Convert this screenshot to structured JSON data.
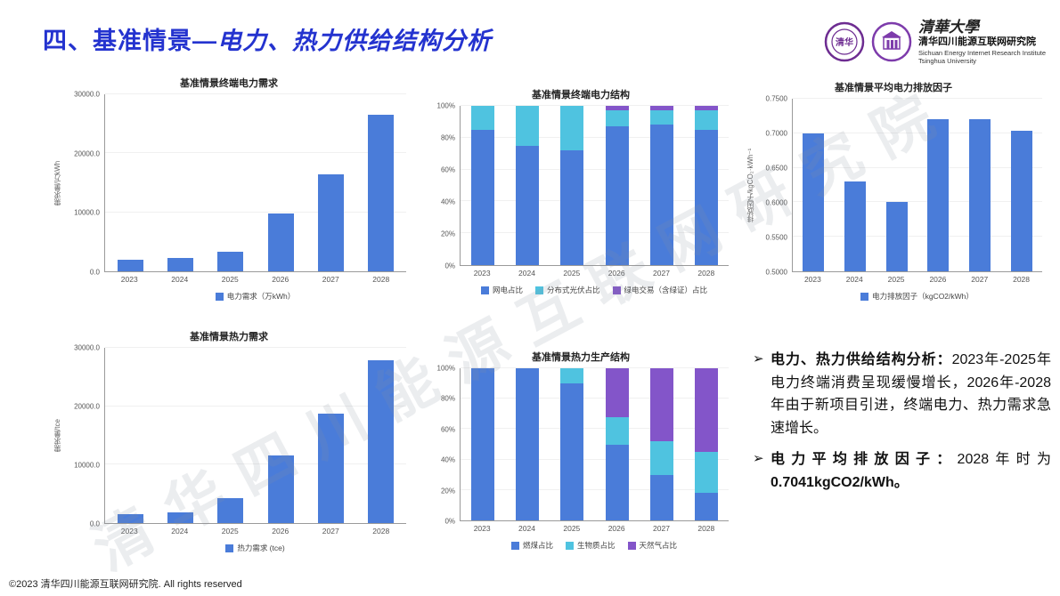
{
  "header": {
    "title_main": "四、基准情景—",
    "title_sub": "电力、热力供给结构分析",
    "org_calligraphy": "清華大學",
    "org_cn": "清华四川能源互联网研究院",
    "org_en1": "Sichuan Energy Internet Research Institute",
    "org_en2": "Tsinghua University"
  },
  "colors": {
    "blue": "#4a7cd9",
    "cyan": "#4fc3e0",
    "purple": "#8355c9",
    "title": "#2433cf"
  },
  "chart_data": [
    {
      "type": "bar",
      "title": "基准情景终端电力需求",
      "ylabel": "需求量/万kWh",
      "categories": [
        "2023",
        "2024",
        "2025",
        "2026",
        "2027",
        "2028"
      ],
      "values": [
        2000,
        2300,
        3300,
        9800,
        16500,
        26500
      ],
      "ylim": [
        0,
        30000
      ],
      "yticks": [
        "0.0",
        "10000.0",
        "20000.0",
        "30000.0"
      ],
      "legend": [
        {
          "label": "电力需求（万kWh）",
          "color": "#4a7cd9"
        }
      ]
    },
    {
      "type": "stacked-bar",
      "title": "基准情景终端电力结构",
      "categories": [
        "2023",
        "2024",
        "2025",
        "2026",
        "2027",
        "2028"
      ],
      "ylim": [
        0,
        100
      ],
      "yticks": [
        "0%",
        "20%",
        "40%",
        "60%",
        "80%",
        "100%"
      ],
      "series": [
        {
          "name": "网电占比",
          "color": "#4a7cd9",
          "values": [
            85,
            75,
            72,
            87,
            88,
            85
          ]
        },
        {
          "name": "分布式光伏占比",
          "color": "#4fc3e0",
          "values": [
            15,
            25,
            28,
            10,
            9,
            12
          ]
        },
        {
          "name": "绿电交易（含绿证）占比",
          "color": "#8355c9",
          "values": [
            0,
            0,
            0,
            3,
            3,
            3
          ]
        }
      ]
    },
    {
      "type": "bar",
      "title": "基准情景平均电力排放因子",
      "ylabel": "排放因子/kgCO₂·kWh⁻¹",
      "categories": [
        "2023",
        "2024",
        "2025",
        "2026",
        "2027",
        "2028"
      ],
      "values": [
        0.7,
        0.63,
        0.6,
        0.72,
        0.72,
        0.7041
      ],
      "ylim": [
        0.5,
        0.75
      ],
      "yticks": [
        "0.5000",
        "0.5500",
        "0.6000",
        "0.6500",
        "0.7000",
        "0.7500"
      ],
      "legend": [
        {
          "label": "电力排放因子（kgCO2/kWh）",
          "color": "#4a7cd9"
        }
      ]
    },
    {
      "type": "bar",
      "title": "基准情景热力需求",
      "ylabel": "需求量/tce",
      "categories": [
        "2023",
        "2024",
        "2025",
        "2026",
        "2027",
        "2028"
      ],
      "values": [
        1500,
        1800,
        4200,
        11500,
        18700,
        27800
      ],
      "ylim": [
        0,
        30000
      ],
      "yticks": [
        "0.0",
        "10000.0",
        "20000.0",
        "30000.0"
      ],
      "legend": [
        {
          "label": "热力需求 (tce)",
          "color": "#4a7cd9"
        }
      ]
    },
    {
      "type": "stacked-bar",
      "title": "基准情景热力生产结构",
      "categories": [
        "2023",
        "2024",
        "2025",
        "2026",
        "2027",
        "2028"
      ],
      "ylim": [
        0,
        100
      ],
      "yticks": [
        "0%",
        "20%",
        "40%",
        "60%",
        "80%",
        "100%"
      ],
      "series": [
        {
          "name": "燃煤占比",
          "color": "#4a7cd9",
          "values": [
            100,
            100,
            90,
            50,
            30,
            18
          ]
        },
        {
          "name": "生物质占比",
          "color": "#4fc3e0",
          "values": [
            0,
            0,
            10,
            18,
            22,
            27
          ]
        },
        {
          "name": "天然气占比",
          "color": "#8355c9",
          "values": [
            0,
            0,
            0,
            32,
            48,
            55
          ]
        }
      ]
    }
  ],
  "analysis": {
    "bullets": [
      {
        "marker": "➢",
        "bold": "电力、热力供给结构分析：",
        "text": "2023年-2025年电力终端消费呈现缓慢增长，2026年-2028年由于新项目引进，终端电力、热力需求急速增长。",
        "bold_tail": ""
      },
      {
        "marker": "➢",
        "bold": "电力平均排放因子：",
        "text": "2028年时为",
        "bold_tail": "0.7041kgCO2/kWh。"
      }
    ]
  },
  "footer": {
    "copyright": "©2023 清华四川能源互联网研究院. All rights reserved"
  },
  "watermark": "清华四川能源互联网研究院"
}
